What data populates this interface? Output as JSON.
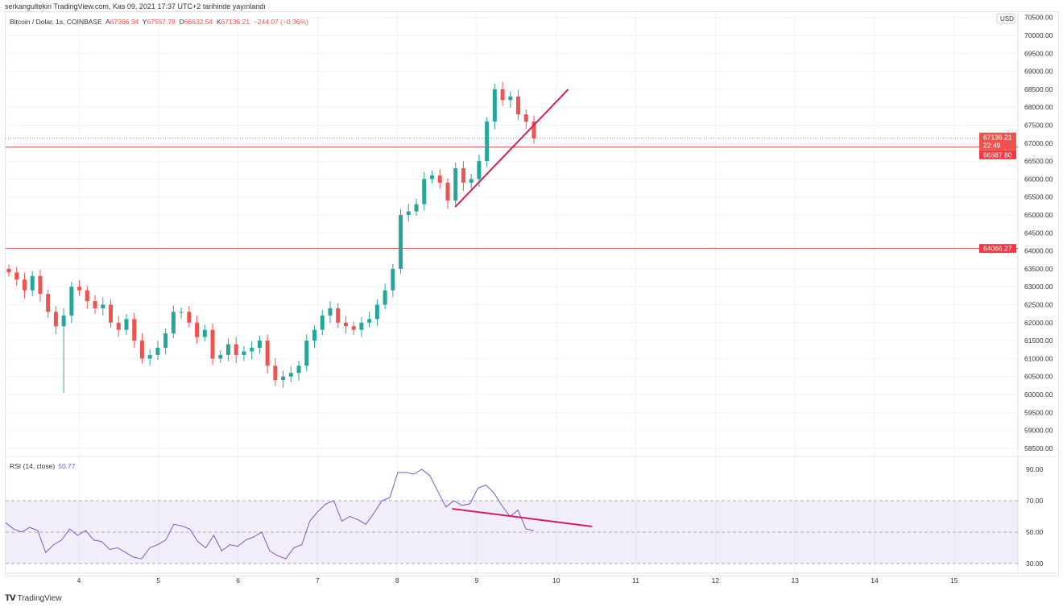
{
  "published": "serkangultekin TradingView.com, Kas 09, 2021 17:37 UTC+2 tarihinde yayınlandı",
  "legend": {
    "symbol": "Bitcoin / Dolar, 1s, COINBASE",
    "open_label": "A",
    "open": "67366.34",
    "high_label": "Y",
    "high": "67557.78",
    "low_label": "D",
    "low": "66632.54",
    "close_label": "K",
    "close": "67136.21",
    "change": "−244.07 (−0.36%)"
  },
  "rsi_legend": {
    "name": "RSI (14, close)",
    "value": "50.77"
  },
  "currency": "USD",
  "price_badges": {
    "last": "67136.21",
    "countdown": "22:49",
    "line1": "66887.80",
    "line2": "64066.27"
  },
  "brand": "TradingView",
  "colors": {
    "up": "#26a69a",
    "down": "#ef5350",
    "trend": "#d81b60",
    "rsi": "#7e57c2"
  },
  "chart_data": [
    {
      "type": "candlestick",
      "title": "Bitcoin / Dolar, 1s, COINBASE",
      "x_start_day": 3.08,
      "x_step_day": 0.1,
      "closes": [
        63400,
        63200,
        62900,
        63300,
        62800,
        62300,
        61900,
        62200,
        63000,
        62900,
        62600,
        62400,
        62500,
        62000,
        61800,
        62100,
        61500,
        61000,
        61100,
        61300,
        61700,
        62300,
        62300,
        62000,
        61600,
        61800,
        61000,
        61100,
        61400,
        61100,
        61200,
        61300,
        61500,
        60800,
        60400,
        60500,
        60600,
        60800,
        61500,
        61800,
        62200,
        62400,
        62000,
        61900,
        61800,
        62000,
        62100,
        62500,
        62900,
        63500,
        65000,
        65100,
        65300,
        66000,
        66100,
        65900,
        65400,
        66300,
        65900,
        66000,
        66500,
        67600,
        68500,
        68200,
        68300,
        67800,
        67600,
        67136
      ],
      "min_wick": {
        "index": 7,
        "value": 60050
      },
      "ylim": [
        58250,
        70750
      ],
      "y_ticks": [
        "70500.00",
        "70000.00",
        "69500.00",
        "69000.00",
        "68500.00",
        "68000.00",
        "67500.00",
        "67000.00",
        "66500.00",
        "66000.00",
        "65500.00",
        "65000.00",
        "64500.00",
        "64000.00",
        "63500.00",
        "63000.00",
        "62500.00",
        "62000.00",
        "61500.00",
        "61000.00",
        "60500.00",
        "60000.00",
        "59500.00",
        "59000.00",
        "58500.00"
      ],
      "x_ticks": [
        "4",
        "5",
        "6",
        "7",
        "8",
        "9",
        "10",
        "11",
        "12",
        "13",
        "14",
        "15"
      ],
      "hlines": [
        66887.8,
        64066.27
      ],
      "last_price": 67136.21,
      "trendline": {
        "from": [
          8.73,
          65224
        ],
        "to": [
          10.15,
          68498
        ]
      }
    },
    {
      "type": "line",
      "title": "RSI (14, close)",
      "values": [
        56,
        52,
        50,
        53,
        51,
        37,
        42,
        45,
        52,
        48,
        51,
        45,
        44,
        39,
        40,
        37,
        34,
        33,
        40,
        42,
        45,
        55,
        54,
        52,
        44,
        40,
        48,
        38,
        42,
        41,
        45,
        47,
        50,
        38,
        35,
        33,
        40,
        42,
        57,
        63,
        68,
        70,
        57,
        60,
        58,
        55,
        62,
        70,
        72,
        88,
        88,
        87,
        90,
        86,
        76,
        66,
        70,
        67,
        68,
        78,
        80,
        75,
        67,
        60,
        64,
        52,
        51
      ],
      "ylim": [
        20,
        95
      ],
      "y_ticks": [
        "90.00",
        "70.00",
        "50.00",
        "30.00"
      ],
      "bands": [
        30,
        50,
        70
      ],
      "trendline": {
        "from": [
          8.69,
          64.9
        ],
        "to": [
          10.45,
          53.6
        ]
      }
    }
  ]
}
